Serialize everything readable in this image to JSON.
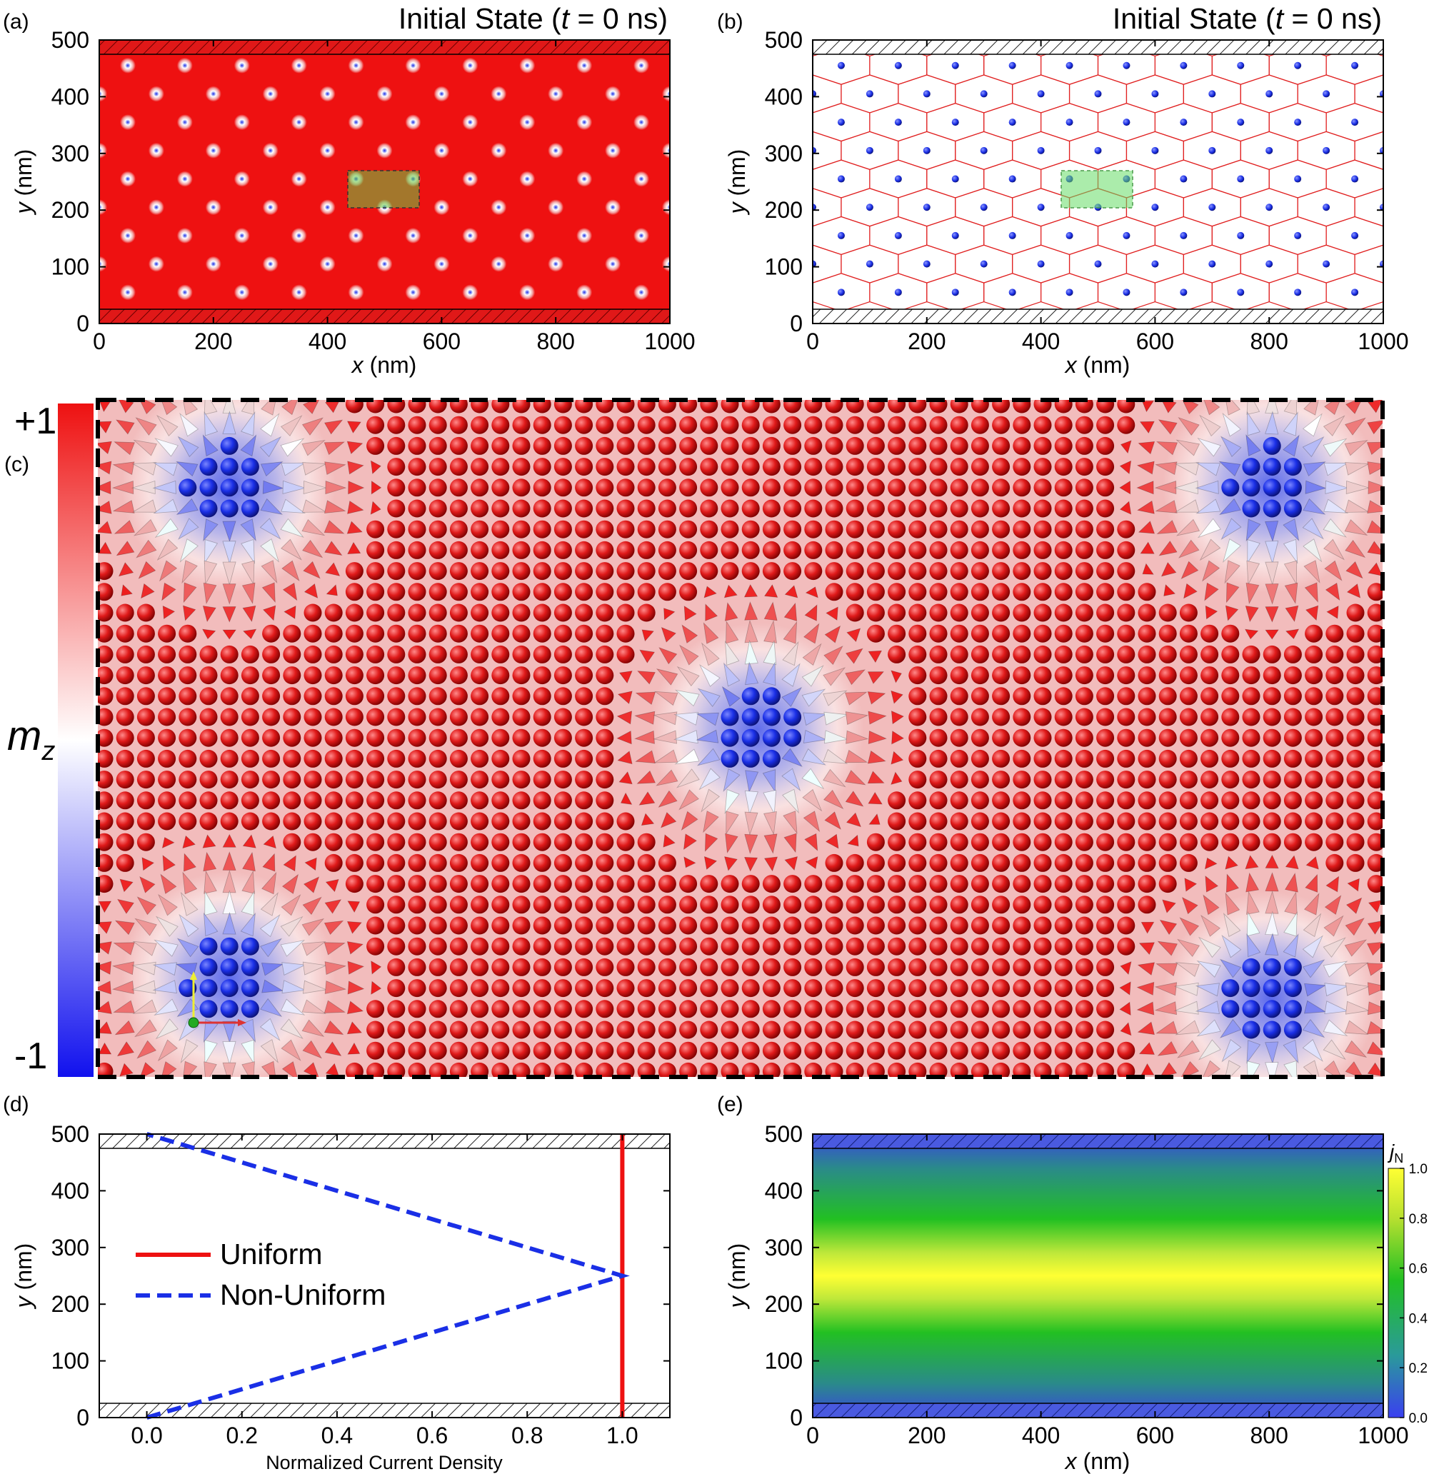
{
  "panels": {
    "a": {
      "label": "(a)",
      "title_prefix": "Initial State (",
      "title_var": "t",
      "title_suffix": " = 0 ns)",
      "xlabel_var": "x",
      "xlabel_unit": " (nm)",
      "ylabel_var": "y",
      "ylabel_unit": " (nm)",
      "xticks": [
        "0",
        "200",
        "400",
        "600",
        "800",
        "1000"
      ],
      "yticks": [
        "0",
        "100",
        "200",
        "300",
        "400",
        "500"
      ]
    },
    "b": {
      "label": "(b)",
      "title_prefix": "Initial State (",
      "title_var": "t",
      "title_suffix": " = 0 ns)",
      "xlabel_var": "x",
      "xlabel_unit": " (nm)",
      "ylabel_var": "y",
      "ylabel_unit": " (nm)",
      "xticks": [
        "0",
        "200",
        "400",
        "600",
        "800",
        "1000"
      ],
      "yticks": [
        "0",
        "100",
        "200",
        "300",
        "400",
        "500"
      ]
    },
    "c": {
      "label": "(c)",
      "colorbar_max": "+1",
      "colorbar_min": "-1",
      "colorbar_var": "m",
      "colorbar_sub": "z"
    },
    "d": {
      "label": "(d)",
      "xlabel": "Normalized Current Density",
      "ylabel_var": "y",
      "ylabel_unit": " (nm)",
      "xticks": [
        "0.0",
        "0.2",
        "0.4",
        "0.6",
        "0.8",
        "1.0"
      ],
      "yticks": [
        "0",
        "100",
        "200",
        "300",
        "400",
        "500"
      ],
      "legend_uniform": "Uniform",
      "legend_nonuniform": "Non-Uniform"
    },
    "e": {
      "label": "(e)",
      "xlabel_var": "x",
      "xlabel_unit": " (nm)",
      "ylabel_var": "y",
      "ylabel_unit": " (nm)",
      "xticks": [
        "0",
        "200",
        "400",
        "600",
        "800",
        "1000"
      ],
      "yticks": [
        "0",
        "100",
        "200",
        "300",
        "400",
        "500"
      ],
      "colorbar_var": "j",
      "colorbar_sub": "N",
      "colorbar_ticks": [
        "0.0",
        "0.2",
        "0.4",
        "0.6",
        "0.8",
        "1.0"
      ]
    }
  },
  "colors": {
    "red": "#ee1111",
    "blue": "#1a2fe6",
    "boundary_red": "#e01818",
    "boundary_blue": "#4455dd",
    "green_box": "#66dd66"
  },
  "chart_data": [
    {
      "panel": "d",
      "type": "line",
      "xlabel": "Normalized Current Density",
      "ylabel": "y (nm)",
      "xlim": [
        -0.1,
        1.1
      ],
      "ylim": [
        0,
        500
      ],
      "series": [
        {
          "name": "Uniform",
          "style": "solid",
          "color": "#ee1111",
          "x": [
            1.0,
            1.0
          ],
          "y": [
            0,
            500
          ]
        },
        {
          "name": "Non-Uniform",
          "style": "dashed",
          "color": "#1a2fe6",
          "x": [
            0.0,
            1.0,
            0.0
          ],
          "y": [
            0,
            250,
            500
          ]
        }
      ]
    },
    {
      "panel": "e",
      "type": "heatmap",
      "xlabel": "x (nm)",
      "ylabel": "y (nm)",
      "xlim": [
        0,
        1000
      ],
      "ylim": [
        0,
        500
      ],
      "colorbar_label": "jN",
      "colorbar_range": [
        0.0,
        1.0
      ]
    }
  ]
}
